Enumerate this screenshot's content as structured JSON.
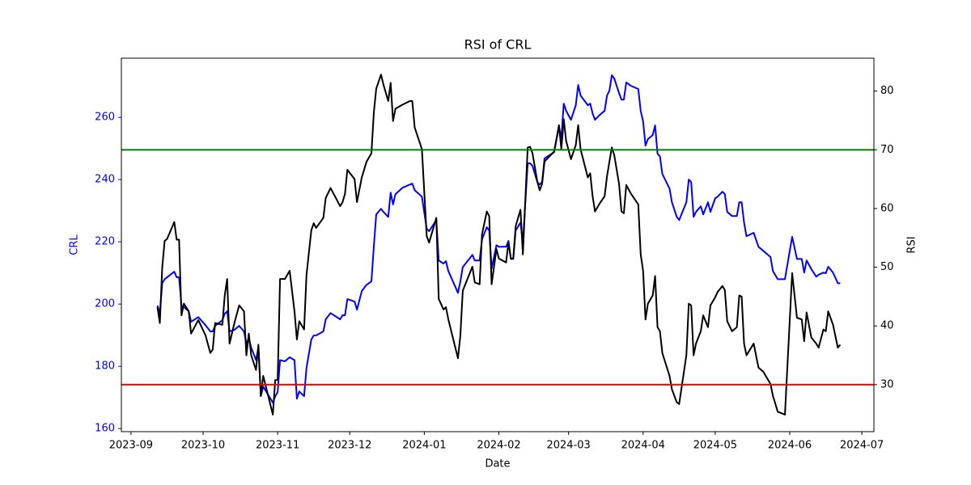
{
  "chart_data": {
    "type": "line",
    "title": "RSI of CRL",
    "xlabel": "Date",
    "ylabel": "CRL",
    "y2label": "RSI",
    "ylabel_color": "#0000ff",
    "x": [
      "2023-09-12",
      "2023-09-13",
      "2023-09-14",
      "2023-09-15",
      "2023-09-16",
      "2023-09-19",
      "2023-09-20",
      "2023-09-21",
      "2023-09-22",
      "2023-09-23",
      "2023-09-25",
      "2023-09-26",
      "2023-09-29",
      "2023-10-02",
      "2023-10-04",
      "2023-10-05",
      "2023-10-06",
      "2023-10-09",
      "2023-10-10",
      "2023-10-11",
      "2023-10-12",
      "2023-10-14",
      "2023-10-16",
      "2023-10-18",
      "2023-10-19",
      "2023-10-20",
      "2023-10-21",
      "2023-10-23",
      "2023-10-24",
      "2023-10-25",
      "2023-10-26",
      "2023-10-30",
      "2023-10-31",
      "2023-11-01",
      "2023-11-02",
      "2023-11-04",
      "2023-11-06",
      "2023-11-08",
      "2023-11-09",
      "2023-11-10",
      "2023-11-12",
      "2023-11-13",
      "2023-11-15",
      "2023-11-16",
      "2023-11-17",
      "2023-11-20",
      "2023-11-21",
      "2023-11-23",
      "2023-11-27",
      "2023-11-28",
      "2023-11-29",
      "2023-11-30",
      "2023-12-03",
      "2023-12-04",
      "2023-12-06",
      "2023-12-08",
      "2023-12-10",
      "2023-12-11",
      "2023-12-12",
      "2023-12-14",
      "2023-12-15",
      "2023-12-17",
      "2023-12-18",
      "2023-12-19",
      "2023-12-20",
      "2023-12-23",
      "2023-12-26",
      "2023-12-27",
      "2023-12-28",
      "2023-12-31",
      "2024-01-02",
      "2024-01-03",
      "2024-01-06",
      "2024-01-07",
      "2024-01-09",
      "2024-01-10",
      "2024-01-11",
      "2024-01-15",
      "2024-01-16",
      "2024-01-17",
      "2024-01-21",
      "2024-01-22",
      "2024-01-24",
      "2024-01-25",
      "2024-01-27",
      "2024-01-28",
      "2024-01-29",
      "2024-01-31",
      "2024-02-01",
      "2024-02-04",
      "2024-02-05",
      "2024-02-06",
      "2024-02-07",
      "2024-02-08",
      "2024-02-10",
      "2024-02-11",
      "2024-02-13",
      "2024-02-14",
      "2024-02-15",
      "2024-02-17",
      "2024-02-18",
      "2024-02-19",
      "2024-02-20",
      "2024-02-24",
      "2024-02-26",
      "2024-02-27",
      "2024-02-28",
      "2024-02-29",
      "2024-03-02",
      "2024-03-04",
      "2024-03-05",
      "2024-03-06",
      "2024-03-09",
      "2024-03-10",
      "2024-03-11",
      "2024-03-12",
      "2024-03-14",
      "2024-03-16",
      "2024-03-17",
      "2024-03-18",
      "2024-03-19",
      "2024-03-20",
      "2024-03-22",
      "2024-03-23",
      "2024-03-24",
      "2024-03-25",
      "2024-03-27",
      "2024-03-30",
      "2024-03-31",
      "2024-04-01",
      "2024-04-02",
      "2024-04-03",
      "2024-04-05",
      "2024-04-06",
      "2024-04-07",
      "2024-04-08",
      "2024-04-09",
      "2024-04-12",
      "2024-04-13",
      "2024-04-15",
      "2024-04-16",
      "2024-04-19",
      "2024-04-20",
      "2024-04-21",
      "2024-04-22",
      "2024-04-23",
      "2024-04-25",
      "2024-04-26",
      "2024-04-28",
      "2024-04-29",
      "2024-05-01",
      "2024-05-02",
      "2024-05-04",
      "2024-05-05",
      "2024-05-06",
      "2024-05-08",
      "2024-05-10",
      "2024-05-11",
      "2024-05-12",
      "2024-05-13",
      "2024-05-14",
      "2024-05-17",
      "2024-05-19",
      "2024-05-21",
      "2024-05-24",
      "2024-05-25",
      "2024-05-27",
      "2024-05-30",
      "2024-06-02",
      "2024-06-04",
      "2024-06-06",
      "2024-06-07",
      "2024-06-08",
      "2024-06-10",
      "2024-06-12",
      "2024-06-13",
      "2024-06-15",
      "2024-06-16",
      "2024-06-17",
      "2024-06-19",
      "2024-06-21",
      "2024-06-22"
    ],
    "series": [
      {
        "color": "#0000ff",
        "axis": "y",
        "values": [
          199.5,
          197,
          206.7,
          208,
          208.6,
          210.4,
          208.6,
          208.6,
          199.5,
          199,
          197.7,
          194.3,
          195.8,
          193.2,
          191.2,
          191.2,
          193,
          194.8,
          196.9,
          197.7,
          191.2,
          191.7,
          193,
          191.2,
          187.3,
          189,
          186,
          182,
          186,
          170.4,
          173.5,
          168.3,
          170.4,
          171.7,
          182,
          181.6,
          182.9,
          182,
          169.6,
          171.9,
          170.4,
          179.5,
          188.6,
          189.9,
          189.9,
          191.2,
          195.1,
          197.1,
          195.1,
          196.4,
          196.4,
          201.6,
          200.8,
          198.2,
          204.2,
          206.2,
          207.3,
          218.4,
          228.8,
          230.6,
          229.6,
          228,
          235.8,
          232,
          235.3,
          237.4,
          238.4,
          238.7,
          236.6,
          234.5,
          224.2,
          223.4,
          227,
          214,
          213,
          213.8,
          210.6,
          203.6,
          207.3,
          211.9,
          215.8,
          214,
          214,
          220.8,
          224.7,
          223.6,
          211.4,
          218.9,
          218.4,
          218.4,
          220.3,
          214.5,
          214.5,
          223.6,
          226.2,
          219.7,
          245.2,
          245.2,
          244.4,
          239.2,
          238.4,
          239.2,
          246.8,
          248.8,
          256.9,
          253.5,
          264.4,
          262.1,
          259.2,
          263.9,
          270.4,
          267,
          263.9,
          264.4,
          261.3,
          259.2,
          260.8,
          262.1,
          267,
          268.6,
          273.5,
          272.5,
          267.8,
          265.7,
          265.7,
          271.2,
          270.1,
          269.1,
          262.1,
          258.7,
          250.9,
          253,
          254.3,
          257.4,
          248.3,
          247.5,
          241.8,
          237.1,
          232.7,
          228,
          227,
          232.7,
          240,
          239.2,
          228,
          229.6,
          231.4,
          228.8,
          232.7,
          229.6,
          234,
          234.5,
          236.1,
          235.3,
          229.6,
          228.3,
          228.3,
          232.7,
          232.7,
          226.2,
          221.8,
          222.9,
          218.4,
          217.1,
          215.1,
          210.6,
          208,
          208,
          221.6,
          214.5,
          214.5,
          210.1,
          214,
          211.2,
          208.8,
          209.4,
          210.1,
          209.9,
          212,
          210.1,
          206.7,
          206.7
        ]
      },
      {
        "color": "#000000",
        "axis": "y2",
        "values": [
          43.2,
          40.5,
          50,
          54.5,
          54.8,
          57.7,
          54.7,
          54.7,
          41.8,
          43.8,
          42.5,
          38.7,
          41,
          38.4,
          35.4,
          36,
          40.5,
          40.2,
          45.2,
          48,
          37,
          40.5,
          43.5,
          42.5,
          35,
          38.7,
          35,
          32.5,
          36.8,
          28.1,
          31.5,
          24.9,
          30.8,
          30.8,
          48,
          48,
          49.4,
          42.5,
          37.7,
          40.8,
          39.4,
          48.7,
          56.3,
          57.5,
          56.7,
          58.4,
          61.8,
          63.5,
          60.4,
          61.1,
          62.5,
          66.6,
          65,
          61.1,
          65.3,
          68,
          69.4,
          76.3,
          80.4,
          82.8,
          81.1,
          78.3,
          81.4,
          74.9,
          77,
          77.7,
          78.3,
          78.3,
          73.8,
          70.1,
          55.3,
          54.2,
          58.4,
          44.6,
          42.8,
          43.2,
          41.1,
          34.5,
          38.4,
          46,
          50.1,
          47.4,
          47.1,
          55.6,
          59.5,
          58.7,
          47.1,
          53.1,
          51.5,
          50.8,
          54.2,
          51.5,
          51.5,
          57,
          59.8,
          52.2,
          70.4,
          70.5,
          69.4,
          64.6,
          63.1,
          64.2,
          68,
          69.7,
          74.2,
          70.1,
          75.2,
          71.5,
          68.4,
          70.8,
          74.2,
          70.1,
          65.3,
          66,
          62.1,
          59.5,
          60.9,
          62.1,
          65.5,
          68,
          70.4,
          69.1,
          64.2,
          59.5,
          59.2,
          64,
          62.5,
          60.7,
          52.2,
          49.4,
          41.1,
          43.8,
          45.2,
          48.5,
          39.8,
          39.1,
          35.4,
          31.5,
          29.2,
          27,
          26.7,
          35,
          43.8,
          43.5,
          35,
          37,
          39.1,
          41.8,
          39.8,
          43.5,
          44.9,
          45.8,
          46.8,
          46.1,
          40.8,
          39.1,
          39.8,
          45.2,
          45,
          37,
          35,
          37,
          32.9,
          32.2,
          30.1,
          28.1,
          25.4,
          24.9,
          49,
          41.4,
          41.1,
          37.4,
          42.3,
          38,
          37,
          36.3,
          39.4,
          39.1,
          42.5,
          40.2,
          36.3,
          36.8
        ]
      }
    ],
    "hlines": [
      {
        "value": 70,
        "color": "#008000",
        "axis": "y2"
      },
      {
        "value": 30,
        "color": "#ff0000",
        "axis": "y2"
      }
    ],
    "xlim": [
      "2023-08-28",
      "2024-07-06"
    ],
    "xticks": [
      {
        "value": "2023-09",
        "label": "2023-09"
      },
      {
        "value": "2023-10",
        "label": "2023-10"
      },
      {
        "value": "2023-11",
        "label": "2023-11"
      },
      {
        "value": "2023-12",
        "label": "2023-12"
      },
      {
        "value": "2024-01",
        "label": "2024-01"
      },
      {
        "value": "2024-02",
        "label": "2024-02"
      },
      {
        "value": "2024-03",
        "label": "2024-03"
      },
      {
        "value": "2024-04",
        "label": "2024-04"
      },
      {
        "value": "2024-05",
        "label": "2024-05"
      },
      {
        "value": "2024-06",
        "label": "2024-06"
      },
      {
        "value": "2024-07",
        "label": "2024-07"
      }
    ],
    "ylim": [
      159,
      279
    ],
    "yticks": [
      160,
      180,
      200,
      220,
      240,
      260
    ],
    "y2lim": [
      22,
      85.6
    ],
    "y2ticks": [
      30,
      40,
      50,
      60,
      70,
      80
    ]
  }
}
